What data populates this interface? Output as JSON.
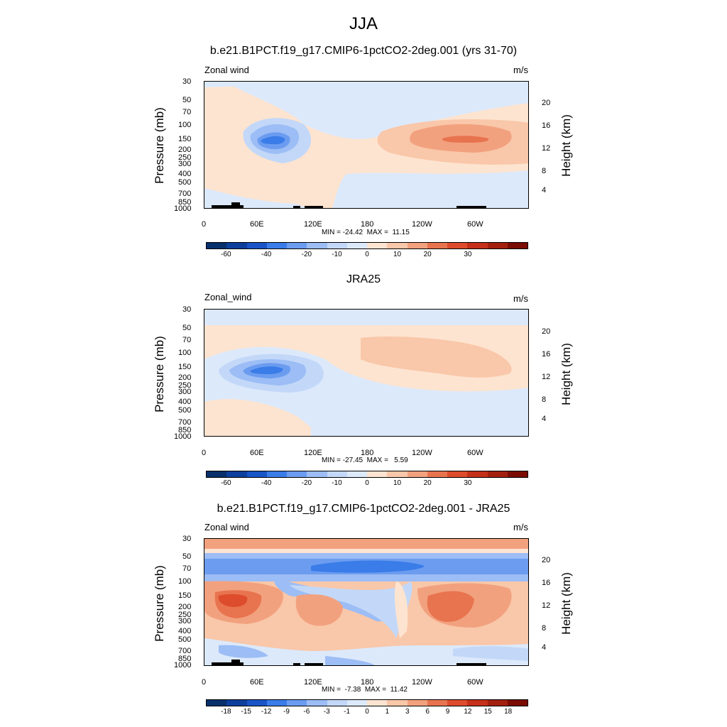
{
  "main_title": "JJA",
  "chart_data": [
    {
      "type": "heatmap",
      "title": "b.e21.B1PCT.f19_g17.CMIP6-1pctCO2-2deg.001 (yrs 31-70)",
      "left_label": "Zonal wind",
      "right_label": "m/s",
      "ylabel": "Pressure (mb)",
      "y2label": "Height (km)",
      "minmax": "MIN = -24.42  MAX =  11.15",
      "x_ticks": [
        "0",
        "60E",
        "120E",
        "180",
        "120W",
        "60W"
      ],
      "y_ticks": [
        "30",
        "50",
        "70",
        "100",
        "150",
        "200",
        "250",
        "300",
        "400",
        "500",
        "700",
        "850",
        "1000"
      ],
      "y2_ticks": [
        "20",
        "16",
        "12",
        "8",
        "4"
      ],
      "colorbar_labels": [
        "-60",
        "-40",
        "-20",
        "-10",
        "0",
        "10",
        "20",
        "30"
      ],
      "min": -24.42,
      "max": 11.15
    },
    {
      "type": "heatmap",
      "title": "JRA25",
      "left_label": "Zonal_wind",
      "right_label": "m/s",
      "ylabel": "Pressure (mb)",
      "y2label": "Height (km)",
      "minmax": "MIN = -27.45  MAX =   5.59",
      "x_ticks": [
        "0",
        "60E",
        "120E",
        "180",
        "120W",
        "60W"
      ],
      "y_ticks": [
        "30",
        "50",
        "70",
        "100",
        "150",
        "200",
        "250",
        "300",
        "400",
        "500",
        "700",
        "850",
        "1000"
      ],
      "y2_ticks": [
        "20",
        "16",
        "12",
        "8",
        "4"
      ],
      "colorbar_labels": [
        "-60",
        "-40",
        "-20",
        "-10",
        "0",
        "10",
        "20",
        "30"
      ],
      "min": -27.45,
      "max": 5.59
    },
    {
      "type": "heatmap",
      "title": "b.e21.B1PCT.f19_g17.CMIP6-1pctCO2-2deg.001 - JRA25",
      "left_label": "Zonal wind",
      "right_label": "m/s",
      "ylabel": "Pressure (mb)",
      "y2label": "Height (km)",
      "minmax": "MIN =  -7.38  MAX =  11.42",
      "x_ticks": [
        "0",
        "60E",
        "120E",
        "180",
        "120W",
        "60W"
      ],
      "y_ticks": [
        "30",
        "50",
        "70",
        "100",
        "150",
        "200",
        "250",
        "300",
        "400",
        "500",
        "700",
        "850",
        "1000"
      ],
      "y2_ticks": [
        "20",
        "16",
        "12",
        "8",
        "4"
      ],
      "colorbar_labels": [
        "-18",
        "-15",
        "-12",
        "-9",
        "-6",
        "-3",
        "-1",
        "0",
        "1",
        "3",
        "6",
        "9",
        "12",
        "15",
        "18"
      ],
      "min": -7.38,
      "max": 11.42
    }
  ],
  "colors": {
    "bar1": [
      "#08306b",
      "#0d3f9c",
      "#1a55c7",
      "#3a7ce8",
      "#6b9cf0",
      "#9cbdf5",
      "#c3d8f8",
      "#dce9fb",
      "#fde4d0",
      "#f9c7a9",
      "#f2a17e",
      "#e8744f",
      "#dd4c2c",
      "#c5301a",
      "#a3200e",
      "#7a0c02"
    ],
    "bar3": [
      "#08306b",
      "#0d3f9c",
      "#1a55c7",
      "#3a7ce8",
      "#6b9cf0",
      "#9cbdf5",
      "#c3d8f8",
      "#dce9fb",
      "#fde4d0",
      "#f9c7a9",
      "#f2a17e",
      "#e8744f",
      "#dd4c2c",
      "#c5301a",
      "#a3200e",
      "#7a0c02"
    ]
  }
}
